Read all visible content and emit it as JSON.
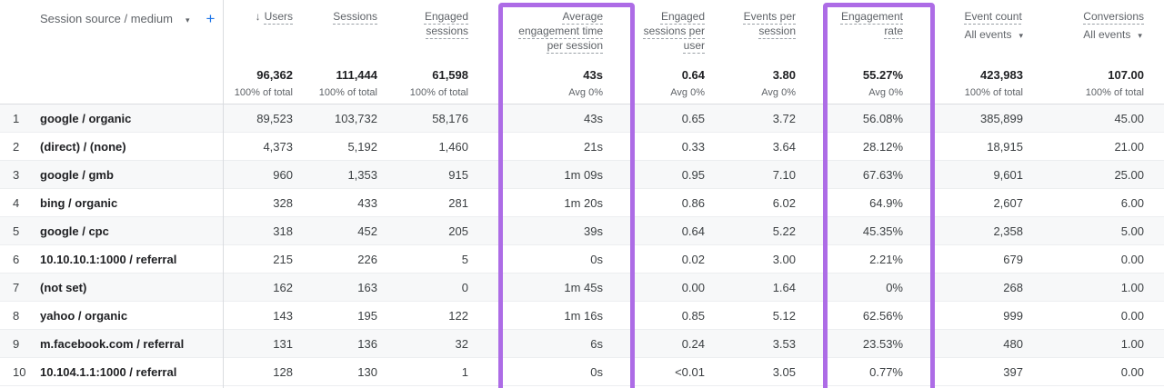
{
  "colors": {
    "highlight_purple": "#ad6ce6",
    "add_button_blue": "#1a73e8"
  },
  "icons": {
    "caret_down": "▾",
    "sort_descending": "↓",
    "add": "+"
  },
  "dimension_header": {
    "label": "Session source / medium"
  },
  "columns": [
    {
      "id": "users",
      "label": "Users",
      "sorted": "descending",
      "total": "96,362",
      "total_sub": "100% of total"
    },
    {
      "id": "sessions",
      "label": "Sessions",
      "total": "111,444",
      "total_sub": "100% of total"
    },
    {
      "id": "engaged_sessions",
      "label": "Engaged sessions",
      "total": "61,598",
      "total_sub": "100% of total"
    },
    {
      "id": "avg_engagement_time",
      "label": "Average engagement time per session",
      "total": "43s",
      "total_sub": "Avg 0%",
      "highlighted": true
    },
    {
      "id": "engaged_sessions_per_user",
      "label": "Engaged sessions per user",
      "total": "0.64",
      "total_sub": "Avg 0%"
    },
    {
      "id": "events_per_session",
      "label": "Events per session",
      "total": "3.80",
      "total_sub": "Avg 0%"
    },
    {
      "id": "engagement_rate",
      "label": "Engagement rate",
      "total": "55.27%",
      "total_sub": "Avg 0%",
      "highlighted": true
    },
    {
      "id": "event_count",
      "label": "Event count",
      "filter": "All events",
      "total": "423,983",
      "total_sub": "100% of total"
    },
    {
      "id": "conversions",
      "label": "Conversions",
      "filter": "All events",
      "total": "107.00",
      "total_sub": "100% of total"
    }
  ],
  "rows": [
    {
      "rank": "1",
      "source": "google / organic",
      "values": [
        "89,523",
        "103,732",
        "58,176",
        "43s",
        "0.65",
        "3.72",
        "56.08%",
        "385,899",
        "45.00"
      ]
    },
    {
      "rank": "2",
      "source": "(direct) / (none)",
      "values": [
        "4,373",
        "5,192",
        "1,460",
        "21s",
        "0.33",
        "3.64",
        "28.12%",
        "18,915",
        "21.00"
      ]
    },
    {
      "rank": "3",
      "source": "google / gmb",
      "values": [
        "960",
        "1,353",
        "915",
        "1m 09s",
        "0.95",
        "7.10",
        "67.63%",
        "9,601",
        "25.00"
      ]
    },
    {
      "rank": "4",
      "source": "bing / organic",
      "values": [
        "328",
        "433",
        "281",
        "1m 20s",
        "0.86",
        "6.02",
        "64.9%",
        "2,607",
        "6.00"
      ]
    },
    {
      "rank": "5",
      "source": "google / cpc",
      "values": [
        "318",
        "452",
        "205",
        "39s",
        "0.64",
        "5.22",
        "45.35%",
        "2,358",
        "5.00"
      ]
    },
    {
      "rank": "6",
      "source": "10.10.10.1:1000 / referral",
      "values": [
        "215",
        "226",
        "5",
        "0s",
        "0.02",
        "3.00",
        "2.21%",
        "679",
        "0.00"
      ]
    },
    {
      "rank": "7",
      "source": "(not set)",
      "values": [
        "162",
        "163",
        "0",
        "1m 45s",
        "0.00",
        "1.64",
        "0%",
        "268",
        "1.00"
      ]
    },
    {
      "rank": "8",
      "source": "yahoo / organic",
      "values": [
        "143",
        "195",
        "122",
        "1m 16s",
        "0.85",
        "5.12",
        "62.56%",
        "999",
        "0.00"
      ]
    },
    {
      "rank": "9",
      "source": "m.facebook.com / referral",
      "values": [
        "131",
        "136",
        "32",
        "6s",
        "0.24",
        "3.53",
        "23.53%",
        "480",
        "1.00"
      ]
    },
    {
      "rank": "10",
      "source": "10.104.1.1:1000 / referral",
      "values": [
        "128",
        "130",
        "1",
        "0s",
        "<0.01",
        "3.05",
        "0.77%",
        "397",
        "0.00"
      ]
    }
  ]
}
